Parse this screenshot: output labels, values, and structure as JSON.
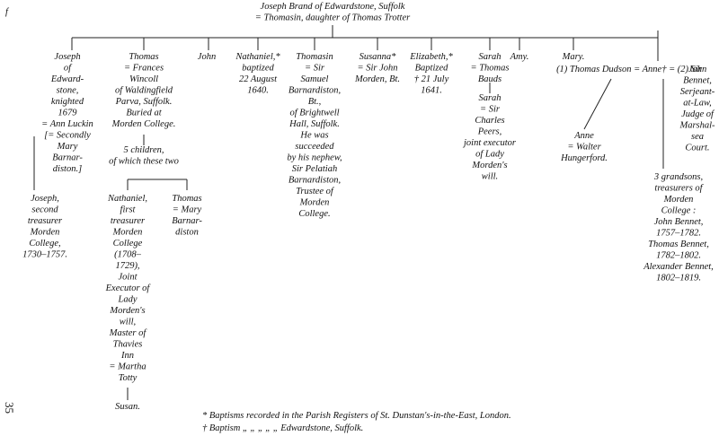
{
  "margin_mark": "f",
  "page_number": "35",
  "blocks": [
    {
      "lines": [
        "Joseph Brand of Edwardstone, Suffolk",
        "= Thomasin, daughter of Thomas Trotter"
      ]
    },
    {
      "lines": [
        "Joseph",
        "of",
        "Edward-",
        "stone,",
        "knighted",
        "1679",
        "= Ann Luckin",
        "[= Secondly",
        "Mary",
        "Barnar-",
        "diston.]"
      ]
    },
    {
      "lines": [
        "Joseph,",
        "second",
        "treasurer",
        "Morden",
        "College,",
        "1730–1757."
      ]
    },
    {
      "lines": [
        "Thomas",
        "= Frances",
        "Wincoll",
        "of Waldingfield",
        "Parva, Suffolk.",
        "Buried at",
        "Morden College."
      ]
    },
    {
      "lines": [
        "5 children,",
        "of which these two"
      ]
    },
    {
      "lines": [
        "Nathaniel,",
        "first",
        "treasurer",
        "Morden",
        "College",
        "(1708–",
        "1729),",
        "Joint",
        "Executor of",
        "Lady",
        "Morden's",
        "will,",
        "Master of",
        "Thavies",
        "Inn",
        "= Martha",
        "Totty"
      ]
    },
    {
      "lines": [
        "Susan."
      ]
    },
    {
      "lines": [
        "Thomas",
        "= Mary",
        "Barnar-",
        "diston"
      ]
    },
    {
      "lines": [
        "John"
      ]
    },
    {
      "lines": [
        "Nathaniel,*",
        "baptized",
        "22 August",
        "1640."
      ]
    },
    {
      "lines": [
        "Thomasin",
        "= Sir",
        "Samuel",
        "Barnardiston,",
        "Bt.,",
        "of Brightwell",
        "Hall, Suffolk.",
        "He was",
        "succeeded",
        "by his nephew,",
        "Sir Pelatiah",
        "Barnardiston,",
        "Trustee of",
        "Morden",
        "College."
      ]
    },
    {
      "lines": [
        "Susanna*",
        "= Sir John",
        "Morden, Bt."
      ]
    },
    {
      "lines": [
        "Elizabeth,*",
        "Baptized",
        "† 21 July",
        "1641."
      ]
    },
    {
      "lines": [
        "Sarah",
        "= Thomas",
        "Bauds"
      ]
    },
    {
      "lines": [
        "Sarah",
        "= Sir",
        "Charles",
        "Peers,",
        "joint executor",
        "of Lady",
        "Morden's",
        "will."
      ]
    },
    {
      "lines": [
        "Amy."
      ]
    },
    {
      "lines": [
        "Mary."
      ]
    },
    {
      "lines": [
        "(1) Thomas Dudson = Anne† = (2) Sir"
      ]
    },
    {
      "lines": [
        "John",
        "Bennet,",
        "Serjeant-",
        "at-Law,",
        "Judge of",
        "Marshal-",
        "sea",
        "Court."
      ]
    },
    {
      "lines": [
        "Anne",
        "= Walter",
        "Hungerford."
      ]
    },
    {
      "lines": [
        "3 grandsons,",
        "treasurers of",
        "Morden",
        "College :",
        "John Bennet,",
        "1757–1782.",
        "Thomas Bennet,",
        "1782–1802.",
        "Alexander Bennet,",
        "1802–1819."
      ]
    }
  ],
  "footnotes": [
    "* Baptisms recorded in the Parish Registers of St. Dunstan's-in-the-East, London.",
    "† Baptism  „   „   „   „   „  Edwardstone, Suffolk."
  ]
}
